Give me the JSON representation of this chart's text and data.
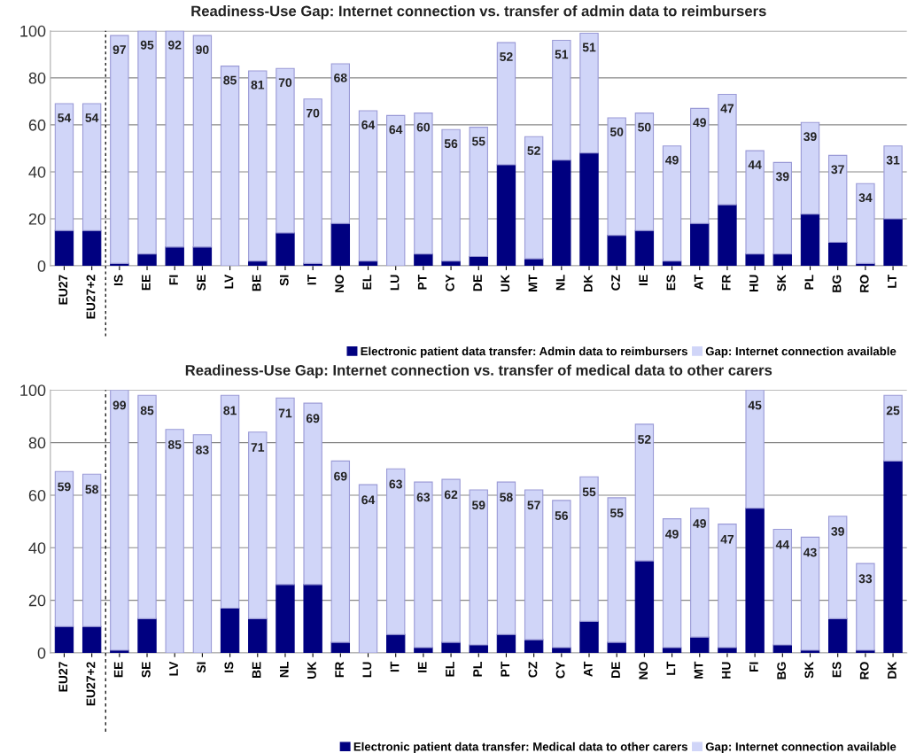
{
  "chart_data": [
    {
      "type": "bar",
      "stacked": true,
      "title": "Readiness-Use Gap: Internet connection vs. transfer of admin data to reimbursers",
      "categories": [
        "EU27",
        "EU27+2",
        "IS",
        "EE",
        "FI",
        "SE",
        "LV",
        "BE",
        "SI",
        "IT",
        "NO",
        "EL",
        "LU",
        "PT",
        "CY",
        "DE",
        "UK",
        "MT",
        "NL",
        "DK",
        "CZ",
        "IE",
        "ES",
        "AT",
        "FR",
        "HU",
        "SK",
        "PL",
        "BG",
        "RO",
        "LT"
      ],
      "ylim": [
        0,
        100
      ],
      "yticks": [
        0,
        20,
        40,
        60,
        80,
        100
      ],
      "grid": "y",
      "legend": "bottom",
      "series": [
        {
          "name": "Electronic patient data transfer: Admin data to reimbursers",
          "color": "#000080",
          "values": [
            15,
            15,
            1,
            5,
            8,
            8,
            0,
            2,
            14,
            1,
            18,
            2,
            0,
            5,
            2,
            4,
            43,
            3,
            45,
            48,
            13,
            15,
            2,
            18,
            26,
            5,
            5,
            22,
            10,
            1,
            20
          ]
        },
        {
          "name": "Gap: Internet connection available",
          "color": "#d0d5f8",
          "values": [
            54,
            54,
            97,
            95,
            92,
            90,
            85,
            81,
            70,
            70,
            68,
            64,
            64,
            60,
            56,
            55,
            52,
            52,
            51,
            51,
            50,
            50,
            49,
            49,
            47,
            44,
            39,
            39,
            37,
            34,
            31
          ],
          "value_labels": [
            "54",
            "54",
            "97",
            "95",
            "92",
            "90",
            "85",
            "81",
            "70",
            "70",
            "68",
            "64",
            "64",
            "60",
            "56",
            "55",
            "52",
            "52",
            "51",
            "51",
            "50",
            "50",
            "49",
            "49",
            "47",
            "44",
            "39",
            "39",
            "37",
            "34",
            "31"
          ]
        }
      ]
    },
    {
      "type": "bar",
      "stacked": true,
      "title": "Readiness-Use Gap: Internet connection vs. transfer of medical data to other carers",
      "categories": [
        "EU27",
        "EU27+2",
        "EE",
        "SE",
        "LV",
        "SI",
        "IS",
        "BE",
        "NL",
        "UK",
        "FR",
        "LU",
        "IT",
        "IE",
        "EL",
        "PL",
        "PT",
        "CZ",
        "CY",
        "AT",
        "DE",
        "NO",
        "LT",
        "MT",
        "HU",
        "FI",
        "BG",
        "SK",
        "ES",
        "RO",
        "DK"
      ],
      "ylim": [
        0,
        100
      ],
      "yticks": [
        0,
        20,
        40,
        60,
        80,
        100
      ],
      "grid": "y",
      "legend": "bottom",
      "series": [
        {
          "name": "Electronic patient data transfer: Medical data to other carers",
          "color": "#000080",
          "values": [
            10,
            10,
            1,
            13,
            0,
            0,
            17,
            13,
            26,
            26,
            4,
            0,
            7,
            2,
            4,
            3,
            7,
            5,
            2,
            12,
            4,
            35,
            2,
            6,
            2,
            55,
            3,
            1,
            13,
            1,
            73
          ]
        },
        {
          "name": "Gap: Internet connection available",
          "color": "#d0d5f8",
          "values": [
            59,
            58,
            99,
            85,
            85,
            83,
            81,
            71,
            71,
            69,
            69,
            64,
            63,
            63,
            62,
            59,
            58,
            57,
            56,
            55,
            55,
            52,
            49,
            49,
            47,
            45,
            44,
            43,
            39,
            33,
            25
          ],
          "value_labels": [
            "59",
            "58",
            "99",
            "85",
            "85",
            "83",
            "81",
            "71",
            "71",
            "69",
            "69",
            "64",
            "63",
            "63",
            "62",
            "59",
            "58",
            "57",
            "56",
            "55",
            "55",
            "52",
            "49",
            "49",
            "47",
            "45",
            "44",
            "43",
            "39",
            "33",
            "25"
          ]
        }
      ]
    }
  ]
}
